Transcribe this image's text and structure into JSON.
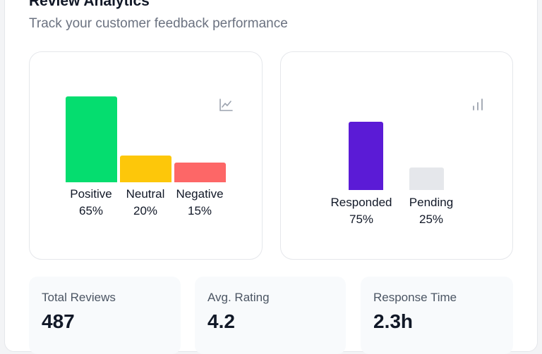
{
  "header": {
    "title": "Review Analytics",
    "subtitle": "Track your customer feedback performance"
  },
  "sentiment_chart": {
    "icon": "line-chart-icon",
    "bars": [
      {
        "label": "Positive",
        "value": "65%",
        "percent": 65,
        "color": "#05dd6f"
      },
      {
        "label": "Neutral",
        "value": "20%",
        "percent": 20,
        "color": "#fdc70a"
      },
      {
        "label": "Negative",
        "value": "15%",
        "percent": 15,
        "color": "#fd6767"
      }
    ]
  },
  "response_chart": {
    "icon": "bar-chart-icon",
    "bars": [
      {
        "label": "Responded",
        "value": "75%",
        "percent": 75,
        "color": "#5b1bd6"
      },
      {
        "label": "Pending",
        "value": "25%",
        "percent": 25,
        "color": "#e5e7eb"
      }
    ]
  },
  "stats": [
    {
      "label": "Total Reviews",
      "value": "487"
    },
    {
      "label": "Avg. Rating",
      "value": "4.2"
    },
    {
      "label": "Response Time",
      "value": "2.3h"
    }
  ]
}
